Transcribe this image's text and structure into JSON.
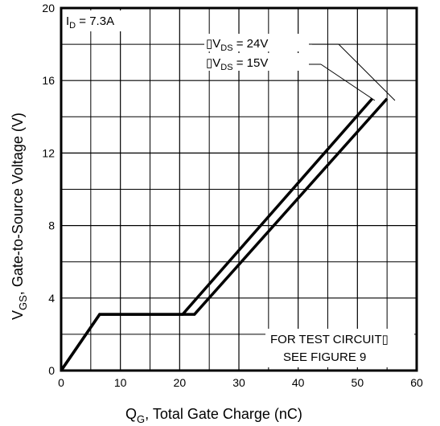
{
  "chart_data": {
    "type": "line",
    "xlabel_main": "Q",
    "xlabel_sub": "G",
    "xlabel_rest": ", Total Gate Charge (nC)",
    "ylabel_main": "V",
    "ylabel_sub": "GS",
    "ylabel_rest": ", Gate-to-Source Voltage (V)",
    "xlim": [
      0,
      60
    ],
    "ylim": [
      0,
      20
    ],
    "xticks": [
      0,
      10,
      20,
      30,
      40,
      50,
      60
    ],
    "yticks": [
      0,
      4,
      8,
      12,
      16,
      20
    ],
    "grid": true,
    "series": [
      {
        "name": "VDS = 24V",
        "x": [
          0,
          6.5,
          22.5,
          55
        ],
        "y": [
          0,
          3.1,
          3.1,
          15
        ]
      },
      {
        "name": "VDS = 15V",
        "x": [
          0,
          6.5,
          20.5,
          52.5
        ],
        "y": [
          0,
          3.1,
          3.1,
          15
        ]
      }
    ],
    "annotations": {
      "id_main": "I",
      "id_sub": "D",
      "id_rest": " = 7.3A",
      "vds24_main": "▯V",
      "vds24_sub": "DS",
      "vds24_rest": " = 24V",
      "vds15_main": "▯V",
      "vds15_sub": "DS",
      "vds15_rest": " = 15V",
      "test_line1": "FOR TEST CIRCUIT▯",
      "test_line2": "SEE FIGURE 9"
    },
    "color": "#000000"
  }
}
